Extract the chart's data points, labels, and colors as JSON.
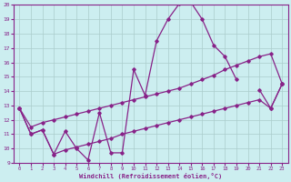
{
  "xlabel": "Windchill (Refroidissement éolien,°C)",
  "bg_color": "#cceef0",
  "line_color": "#882288",
  "grid_color": "#aacccc",
  "x_data": [
    0,
    1,
    2,
    3,
    4,
    5,
    6,
    7,
    8,
    9,
    10,
    11,
    12,
    13,
    14,
    15,
    16,
    17,
    18,
    19,
    20,
    21,
    22,
    23
  ],
  "y_main": [
    12.8,
    11.0,
    11.3,
    9.6,
    11.2,
    10.0,
    9.2,
    12.5,
    9.7,
    9.7,
    15.5,
    13.7,
    17.5,
    19.0,
    20.1,
    20.2,
    19.0,
    17.2,
    16.4,
    14.8,
    null,
    14.1,
    12.8,
    14.5
  ],
  "y_upper": [
    12.8,
    11.5,
    11.8,
    12.0,
    12.2,
    12.4,
    12.6,
    12.8,
    13.0,
    13.2,
    13.4,
    13.6,
    13.8,
    14.0,
    14.2,
    14.5,
    14.8,
    15.1,
    15.5,
    15.8,
    16.1,
    16.4,
    16.6,
    14.5
  ],
  "y_lower": [
    12.8,
    11.0,
    11.3,
    9.6,
    9.9,
    10.1,
    10.3,
    10.5,
    10.7,
    11.0,
    11.2,
    11.4,
    11.6,
    11.8,
    12.0,
    12.2,
    12.4,
    12.6,
    12.8,
    13.0,
    13.2,
    13.4,
    12.8,
    14.5
  ],
  "ylim": [
    9,
    20
  ],
  "xlim_min": -0.5,
  "xlim_max": 23.5,
  "yticks": [
    9,
    10,
    11,
    12,
    13,
    14,
    15,
    16,
    17,
    18,
    19,
    20
  ],
  "xticks": [
    0,
    1,
    2,
    3,
    4,
    5,
    6,
    7,
    8,
    9,
    10,
    11,
    12,
    13,
    14,
    15,
    16,
    17,
    18,
    19,
    20,
    21,
    22,
    23
  ]
}
